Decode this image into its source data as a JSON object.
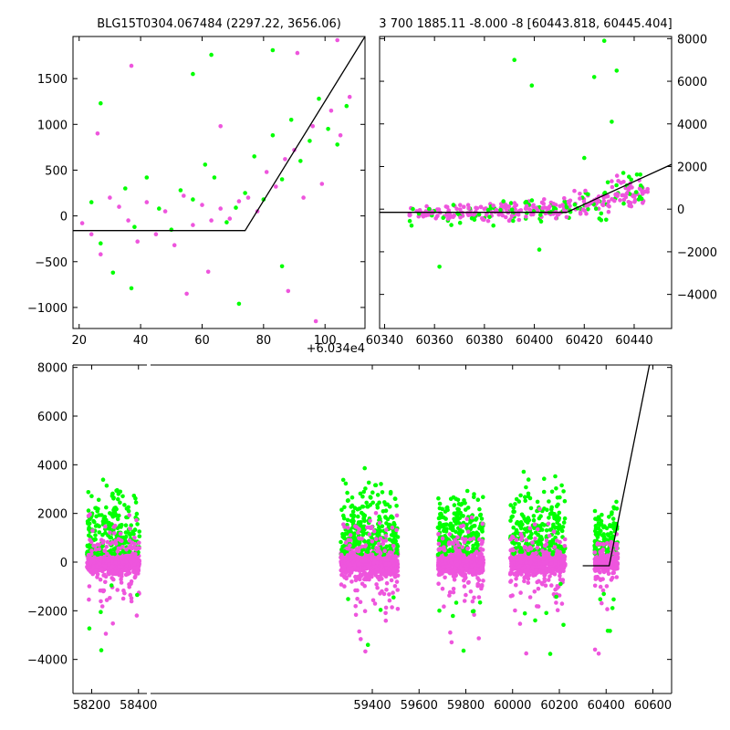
{
  "figure": {
    "colors": {
      "series_a": "#00ff00",
      "series_b": "#ee55dd",
      "model": "#000000"
    }
  },
  "chart_data": [
    {
      "type": "scatter",
      "panel": "top-left",
      "title": "BLG15T0304.067484 (2297.22, 3656.06)",
      "xlabel": "",
      "ylabel": "",
      "x_offset_label": "+6.034e4",
      "xlim": [
        18,
        113
      ],
      "ylim": [
        -1230,
        1960
      ],
      "xticks": [
        20,
        40,
        60,
        80,
        100
      ],
      "yticks": [
        -1000,
        -500,
        0,
        500,
        1000,
        1500
      ],
      "series": [
        {
          "color_key": "series_a",
          "values": [
            [
              24,
              150
            ],
            [
              27,
              -300
            ],
            [
              31,
              -620
            ],
            [
              35,
              300
            ],
            [
              38,
              -120
            ],
            [
              42,
              420
            ],
            [
              46,
              80
            ],
            [
              50,
              -150
            ],
            [
              53,
              280
            ],
            [
              57,
              180
            ],
            [
              61,
              560
            ],
            [
              64,
              420
            ],
            [
              68,
              -70
            ],
            [
              71,
              90
            ],
            [
              74,
              250
            ],
            [
              77,
              650
            ],
            [
              80,
              180
            ],
            [
              83,
              880
            ],
            [
              86,
              400
            ],
            [
              89,
              1050
            ],
            [
              92,
              600
            ],
            [
              95,
              820
            ],
            [
              98,
              1280
            ],
            [
              101,
              950
            ],
            [
              104,
              780
            ],
            [
              107,
              1200
            ],
            [
              27,
              1230
            ],
            [
              57,
              1550
            ],
            [
              63,
              1760
            ],
            [
              83,
              1810
            ],
            [
              37,
              -790
            ],
            [
              72,
              -960
            ],
            [
              86,
              -550
            ]
          ]
        },
        {
          "color_key": "series_b",
          "values": [
            [
              21,
              -80
            ],
            [
              24,
              -200
            ],
            [
              27,
              -420
            ],
            [
              30,
              200
            ],
            [
              33,
              100
            ],
            [
              36,
              -50
            ],
            [
              39,
              -280
            ],
            [
              42,
              150
            ],
            [
              45,
              -200
            ],
            [
              48,
              50
            ],
            [
              51,
              -320
            ],
            [
              54,
              220
            ],
            [
              57,
              -100
            ],
            [
              60,
              120
            ],
            [
              63,
              -50
            ],
            [
              66,
              80
            ],
            [
              69,
              -30
            ],
            [
              72,
              160
            ],
            [
              75,
              200
            ],
            [
              78,
              50
            ],
            [
              81,
              480
            ],
            [
              84,
              320
            ],
            [
              87,
              620
            ],
            [
              90,
              720
            ],
            [
              93,
              200
            ],
            [
              96,
              980
            ],
            [
              99,
              350
            ],
            [
              102,
              1150
            ],
            [
              105,
              880
            ],
            [
              108,
              1300
            ],
            [
              26,
              900
            ],
            [
              37,
              1640
            ],
            [
              55,
              -850
            ],
            [
              62,
              -610
            ],
            [
              88,
              -820
            ],
            [
              97,
              -1150
            ],
            [
              104,
              1920
            ],
            [
              66,
              980
            ],
            [
              91,
              1780
            ]
          ]
        }
      ],
      "model_line": [
        [
          18,
          -160
        ],
        [
          74,
          -160
        ],
        [
          113,
          1960
        ]
      ]
    },
    {
      "type": "scatter",
      "panel": "top-right",
      "title": "3 700 1885.11 -8.000 -8 [60443.818, 60445.404]",
      "xlabel": "",
      "ylabel": "",
      "xlim": [
        60338,
        60455
      ],
      "ylim": [
        -5600,
        8100
      ],
      "xticks": [
        60340,
        60360,
        60380,
        60400,
        60420,
        60440
      ],
      "yticks": [
        -4000,
        -2000,
        0,
        2000,
        4000,
        6000,
        8000
      ],
      "clusters": [
        {
          "x_range": [
            60350,
            60372
          ],
          "y_center": -200,
          "y_spread": 500,
          "count": 70
        },
        {
          "x_range": [
            60373,
            60395
          ],
          "y_center": -100,
          "y_spread": 550,
          "count": 90
        },
        {
          "x_range": [
            60396,
            60415
          ],
          "y_center": 0,
          "y_spread": 600,
          "count": 90
        },
        {
          "x_range": [
            60416,
            60430
          ],
          "y_center": 300,
          "y_spread": 900,
          "count": 60
        },
        {
          "x_range": [
            60431,
            60446
          ],
          "y_center": 700,
          "y_spread": 1100,
          "count": 70
        }
      ],
      "outliers": [
        [
          60392,
          7000
        ],
        [
          60399,
          5800
        ],
        [
          60428,
          7900
        ],
        [
          60424,
          6200
        ],
        [
          60433,
          6500
        ],
        [
          60431,
          4100
        ],
        [
          60362,
          -2700
        ],
        [
          60402,
          -1900
        ],
        [
          60420,
          2400
        ]
      ],
      "model_line": [
        [
          60338,
          -150
        ],
        [
          60413,
          -150
        ],
        [
          60455,
          2100
        ]
      ]
    },
    {
      "type": "scatter",
      "panel": "bottom",
      "title": "",
      "xlabel": "",
      "ylabel": "",
      "xlim": [
        58120,
        60680
      ],
      "ylim": [
        -5400,
        8100
      ],
      "xticks": [
        58200,
        58400,
        59400,
        59600,
        59800,
        60000,
        60200,
        60400,
        60600
      ],
      "yticks": [
        -4000,
        -2000,
        0,
        2000,
        4000,
        6000,
        8000
      ],
      "axis_break_x": 58440,
      "seasons": [
        {
          "x_range": [
            58180,
            58405
          ],
          "spread": 1200,
          "count": 520
        },
        {
          "x_range": [
            59265,
            59510
          ],
          "spread": 1300,
          "count": 620
        },
        {
          "x_range": [
            59680,
            59875
          ],
          "spread": 1200,
          "count": 500
        },
        {
          "x_range": [
            59990,
            60225
          ],
          "spread": 1250,
          "count": 520
        },
        {
          "x_range": [
            60350,
            60450
          ],
          "spread": 900,
          "count": 260
        }
      ],
      "model_line": [
        [
          60300,
          -150
        ],
        [
          60413,
          -150
        ],
        [
          60585,
          8100
        ]
      ]
    }
  ]
}
